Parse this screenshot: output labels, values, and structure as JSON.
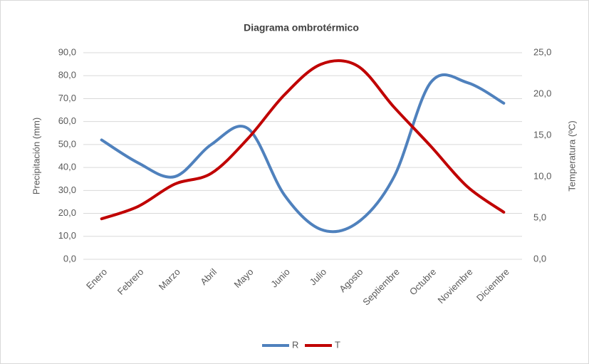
{
  "chart_data": {
    "type": "line",
    "title": "Diagrama ombrotérmico",
    "y_label": "Precipitación (mm)",
    "y2_label": "Temperatura (ºC)",
    "categories": [
      "Enero",
      "Febrero",
      "Marzo",
      "Abril",
      "Mayo",
      "Junio",
      "Julio",
      "Agosto",
      "Septiembre",
      "Octubre",
      "Noviembre",
      "Diciembre"
    ],
    "series": [
      {
        "name": "R",
        "color": "#4f81bd",
        "values": [
          52,
          42,
          36,
          50,
          57,
          28,
          13,
          16,
          36,
          77,
          77,
          68
        ]
      },
      {
        "name": "T",
        "color": "#c00000",
        "axis": "y2",
        "values": [
          4.9,
          6.4,
          9.1,
          10.4,
          14.6,
          19.9,
          23.6,
          23.4,
          18.4,
          13.7,
          8.8,
          5.7
        ]
      }
    ],
    "ylim": [
      0,
      90
    ],
    "yticks": [
      {
        "value": 0,
        "label": "0,0"
      },
      {
        "value": 10,
        "label": "10,0"
      },
      {
        "value": 20,
        "label": "20,0"
      },
      {
        "value": 30,
        "label": "30,0"
      },
      {
        "value": 40,
        "label": "40,0"
      },
      {
        "value": 50,
        "label": "50,0"
      },
      {
        "value": 60,
        "label": "60,0"
      },
      {
        "value": 70,
        "label": "70,0"
      },
      {
        "value": 80,
        "label": "80,0"
      },
      {
        "value": 90,
        "label": "90,0"
      }
    ],
    "y2lim": [
      0,
      25
    ],
    "y2ticks": [
      {
        "value": 0,
        "label": "0,0"
      },
      {
        "value": 5,
        "label": "5,0"
      },
      {
        "value": 10,
        "label": "10,0"
      },
      {
        "value": 15,
        "label": "15,0"
      },
      {
        "value": 20,
        "label": "20,0"
      },
      {
        "value": 25,
        "label": "25,0"
      }
    ],
    "grid": true,
    "smooth": true,
    "legend": "bottom"
  }
}
